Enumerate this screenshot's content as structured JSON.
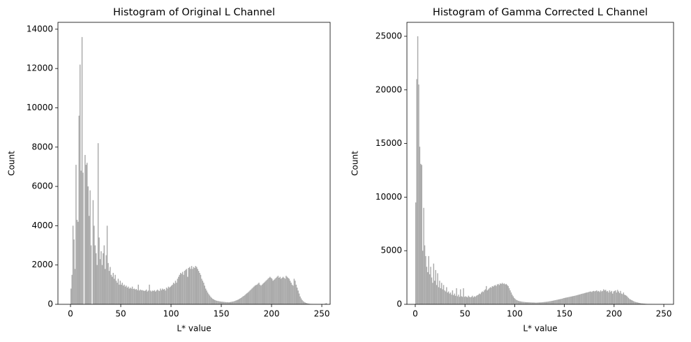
{
  "chart_data": [
    {
      "type": "histogram",
      "title": "Histogram of Original L Channel",
      "xlabel": "L* value",
      "ylabel": "Count",
      "color": "#a9a9a9",
      "xlim": [
        -12.5,
        258.3
      ],
      "ylim": [
        0,
        14350
      ],
      "xticks": [
        0,
        50,
        100,
        150,
        200,
        250
      ],
      "yticks": [
        0,
        2000,
        4000,
        6000,
        8000,
        10000,
        12000,
        14000
      ],
      "bins": [
        0,
        1,
        2,
        3,
        4,
        5,
        6,
        7,
        8,
        9,
        10,
        11,
        12,
        13,
        14,
        15,
        16,
        17,
        18,
        19,
        20,
        21,
        22,
        23,
        24,
        25,
        26,
        27,
        28,
        29,
        30,
        31,
        32,
        33,
        34,
        35,
        36,
        37,
        38,
        39,
        40,
        41,
        42,
        43,
        44,
        45,
        46,
        47,
        48,
        49,
        50,
        51,
        52,
        53,
        54,
        55,
        56,
        57,
        58,
        59,
        60,
        61,
        62,
        63,
        64,
        65,
        66,
        67,
        68,
        69,
        70,
        71,
        72,
        73,
        74,
        75,
        76,
        77,
        78,
        79,
        80,
        81,
        82,
        83,
        84,
        85,
        86,
        87,
        88,
        89,
        90,
        91,
        92,
        93,
        94,
        95,
        96,
        97,
        98,
        99,
        100,
        101,
        102,
        103,
        104,
        105,
        106,
        107,
        108,
        109,
        110,
        111,
        112,
        113,
        114,
        115,
        116,
        117,
        118,
        119,
        120,
        121,
        122,
        123,
        124,
        125,
        126,
        127,
        128,
        129,
        130,
        131,
        132,
        133,
        134,
        135,
        136,
        137,
        138,
        139,
        140,
        141,
        142,
        143,
        144,
        145,
        146,
        147,
        148,
        149,
        150,
        151,
        152,
        153,
        154,
        155,
        156,
        157,
        158,
        159,
        160,
        161,
        162,
        163,
        164,
        165,
        166,
        167,
        168,
        169,
        170,
        171,
        172,
        173,
        174,
        175,
        176,
        177,
        178,
        179,
        180,
        181,
        182,
        183,
        184,
        185,
        186,
        187,
        188,
        189,
        190,
        191,
        192,
        193,
        194,
        195,
        196,
        197,
        198,
        199,
        200,
        201,
        202,
        203,
        204,
        205,
        206,
        207,
        208,
        209,
        210,
        211,
        212,
        213,
        214,
        215,
        216,
        217,
        218,
        219,
        220,
        221,
        222,
        223,
        224,
        225,
        226,
        227,
        228,
        229,
        230,
        231,
        232,
        233,
        234,
        235,
        236,
        237,
        238,
        239,
        240,
        241,
        242,
        243,
        244,
        245,
        246,
        247,
        248,
        249,
        250,
        251,
        252,
        253,
        254,
        255,
        256
      ],
      "values": [
        800,
        1500,
        4000,
        3300,
        1800,
        7100,
        4300,
        4200,
        9600,
        12200,
        6800,
        13600,
        6700,
        0,
        7600,
        7100,
        7200,
        6000,
        4500,
        5800,
        3000,
        0,
        5300,
        4000,
        3000,
        2600,
        2000,
        8200,
        3400,
        2300,
        2700,
        2000,
        2600,
        3000,
        1800,
        2500,
        4000,
        2100,
        1700,
        1900,
        1500,
        1400,
        1600,
        1300,
        1500,
        1200,
        1100,
        1300,
        1000,
        1200,
        1000,
        1100,
        950,
        1000,
        900,
        950,
        850,
        900,
        800,
        850,
        800,
        900,
        780,
        800,
        750,
        780,
        720,
        1000,
        700,
        750,
        720,
        720,
        700,
        680,
        700,
        750,
        650,
        700,
        1000,
        700,
        650,
        700,
        680,
        720,
        650,
        700,
        750,
        700,
        680,
        800,
        720,
        800,
        750,
        780,
        700,
        850,
        800,
        900,
        850,
        900,
        950,
        1000,
        1100,
        1050,
        1200,
        1100,
        1300,
        1400,
        1500,
        1600,
        1550,
        1650,
        1500,
        1700,
        1750,
        1800,
        1400,
        1850,
        1900,
        1800,
        1950,
        1800,
        1900,
        1850,
        1950,
        1900,
        1800,
        1700,
        1600,
        1500,
        1300,
        1200,
        1100,
        950,
        800,
        700,
        600,
        520,
        450,
        380,
        330,
        280,
        250,
        220,
        200,
        180,
        170,
        160,
        150,
        140,
        130,
        130,
        120,
        120,
        110,
        110,
        110,
        100,
        110,
        120,
        130,
        140,
        150,
        170,
        190,
        210,
        230,
        260,
        290,
        320,
        360,
        400,
        430,
        470,
        520,
        560,
        600,
        650,
        700,
        750,
        800,
        850,
        900,
        950,
        980,
        1000,
        1050,
        1100,
        1000,
        950,
        1000,
        1050,
        1100,
        1150,
        1200,
        1250,
        1300,
        1350,
        1400,
        1350,
        1300,
        1200,
        1250,
        1300,
        1350,
        1400,
        1450,
        1350,
        1400,
        1300,
        1350,
        1400,
        1350,
        1300,
        1450,
        1400,
        1350,
        1300,
        1200,
        1100,
        1000,
        950,
        1300,
        1200,
        1000,
        850,
        700,
        550,
        400,
        300,
        220,
        160,
        120,
        90,
        70,
        50,
        40,
        30,
        20,
        15,
        10,
        8,
        6,
        5,
        4,
        3,
        3,
        2,
        2,
        2,
        1,
        1,
        1,
        40,
        60,
        10
      ]
    },
    {
      "type": "histogram",
      "title": "Histogram of Gamma Corrected L Channel",
      "xlabel": "L* value",
      "ylabel": "Count",
      "color": "#a9a9a9",
      "xlim": [
        -8.4,
        259.8
      ],
      "ylim": [
        0,
        26300
      ],
      "xticks": [
        0,
        50,
        100,
        150,
        200,
        250
      ],
      "yticks": [
        0,
        5000,
        10000,
        15000,
        20000,
        25000
      ],
      "bins": [
        0,
        1,
        2,
        3,
        4,
        5,
        6,
        7,
        8,
        9,
        10,
        11,
        12,
        13,
        14,
        15,
        16,
        17,
        18,
        19,
        20,
        21,
        22,
        23,
        24,
        25,
        26,
        27,
        28,
        29,
        30,
        31,
        32,
        33,
        34,
        35,
        36,
        37,
        38,
        39,
        40,
        41,
        42,
        43,
        44,
        45,
        46,
        47,
        48,
        49,
        50,
        51,
        52,
        53,
        54,
        55,
        56,
        57,
        58,
        59,
        60,
        61,
        62,
        63,
        64,
        65,
        66,
        67,
        68,
        69,
        70,
        71,
        72,
        73,
        74,
        75,
        76,
        77,
        78,
        79,
        80,
        81,
        82,
        83,
        84,
        85,
        86,
        87,
        88,
        89,
        90,
        91,
        92,
        93,
        94,
        95,
        96,
        97,
        98,
        99,
        100,
        101,
        102,
        103,
        104,
        105,
        106,
        107,
        108,
        109,
        110,
        111,
        112,
        113,
        114,
        115,
        116,
        117,
        118,
        119,
        120,
        121,
        122,
        123,
        124,
        125,
        126,
        127,
        128,
        129,
        130,
        131,
        132,
        133,
        134,
        135,
        136,
        137,
        138,
        139,
        140,
        141,
        142,
        143,
        144,
        145,
        146,
        147,
        148,
        149,
        150,
        151,
        152,
        153,
        154,
        155,
        156,
        157,
        158,
        159,
        160,
        161,
        162,
        163,
        164,
        165,
        166,
        167,
        168,
        169,
        170,
        171,
        172,
        173,
        174,
        175,
        176,
        177,
        178,
        179,
        180,
        181,
        182,
        183,
        184,
        185,
        186,
        187,
        188,
        189,
        190,
        191,
        192,
        193,
        194,
        195,
        196,
        197,
        198,
        199,
        200,
        201,
        202,
        203,
        204,
        205,
        206,
        207,
        208,
        209,
        210,
        211,
        212,
        213,
        214,
        215,
        216,
        217,
        218,
        219,
        220,
        221,
        222,
        223,
        224,
        225,
        226,
        227,
        228,
        229,
        230,
        231,
        232,
        233,
        234,
        235,
        236,
        237,
        238,
        239,
        240,
        241,
        242,
        243,
        244,
        245,
        246,
        247,
        248,
        249,
        250,
        251,
        252,
        253,
        254,
        255,
        256
      ],
      "values": [
        9500,
        21000,
        25000,
        20500,
        14700,
        13100,
        13000,
        5000,
        9000,
        5500,
        4500,
        3500,
        3000,
        4500,
        2800,
        3500,
        2500,
        2000,
        3800,
        2200,
        3200,
        1800,
        2900,
        1600,
        2200,
        1500,
        2000,
        1400,
        1800,
        1300,
        1200,
        1600,
        1100,
        1200,
        1000,
        1100,
        900,
        1300,
        850,
        1000,
        800,
        1500,
        750,
        900,
        700,
        1400,
        750,
        700,
        1500,
        700,
        750,
        700,
        650,
        800,
        700,
        650,
        700,
        800,
        650,
        750,
        700,
        800,
        850,
        900,
        1000,
        950,
        1100,
        1200,
        1150,
        1300,
        1400,
        1700,
        1300,
        1400,
        1500,
        1600,
        1550,
        1700,
        1650,
        1750,
        1800,
        1700,
        1850,
        1900,
        1800,
        1950,
        1900,
        2000,
        1900,
        1950,
        1850,
        1900,
        1800,
        1700,
        1500,
        1300,
        1100,
        900,
        750,
        600,
        500,
        420,
        380,
        330,
        300,
        280,
        260,
        240,
        230,
        220,
        210,
        200,
        200,
        190,
        190,
        180,
        180,
        170,
        170,
        170,
        160,
        160,
        160,
        170,
        170,
        180,
        180,
        190,
        200,
        210,
        220,
        230,
        240,
        250,
        270,
        290,
        300,
        320,
        340,
        360,
        380,
        400,
        420,
        440,
        460,
        480,
        500,
        520,
        550,
        580,
        600,
        620,
        640,
        660,
        680,
        700,
        720,
        740,
        760,
        780,
        800,
        820,
        850,
        870,
        900,
        920,
        950,
        980,
        1000,
        1020,
        1050,
        1080,
        1100,
        1120,
        1150,
        1180,
        1200,
        1150,
        1220,
        1250,
        1200,
        1250,
        1300,
        1200,
        1250,
        1150,
        1300,
        1200,
        1250,
        1400,
        1300,
        1350,
        1200,
        1250,
        1100,
        1300,
        1150,
        1250,
        1000,
        1200,
        1250,
        1300,
        1100,
        1350,
        1200,
        1050,
        1250,
        1000,
        950,
        1100,
        900,
        850,
        800,
        700,
        600,
        500,
        450,
        400,
        350,
        300,
        250,
        220,
        200,
        170,
        150,
        130,
        110,
        90,
        80,
        70,
        60,
        50,
        40,
        35,
        30,
        25,
        20,
        15,
        12,
        10,
        8,
        6,
        5,
        4,
        3,
        3,
        2,
        2,
        2,
        1,
        1,
        1,
        1,
        1,
        1,
        1
      ]
    }
  ]
}
